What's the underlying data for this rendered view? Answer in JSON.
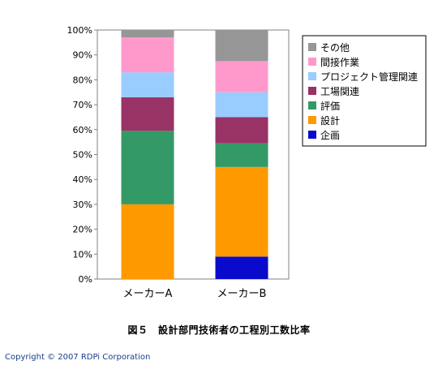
{
  "caption": "図５　設計部門技術者の工程別工数比率",
  "copyright": "Copyright © 2007  RDPi Corporation",
  "chart_data": {
    "type": "bar",
    "stacked": true,
    "categories": [
      "メーカーA",
      "メーカーB"
    ],
    "y_tick_labels": [
      "0%",
      "10%",
      "20%",
      "30%",
      "40%",
      "50%",
      "60%",
      "70%",
      "80%",
      "90%",
      "100%"
    ],
    "ylim": [
      0,
      100
    ],
    "legend_position": "right",
    "series": [
      {
        "name": "企画",
        "color": "#0a0acc",
        "values": [
          0,
          9
        ]
      },
      {
        "name": "設計",
        "color": "#ff9900",
        "values": [
          30,
          36
        ]
      },
      {
        "name": "評価",
        "color": "#339966",
        "values": [
          29.5,
          9.5
        ]
      },
      {
        "name": "工場関連",
        "color": "#993366",
        "values": [
          13.5,
          10.5
        ]
      },
      {
        "name": "プロジェクト管理関連",
        "color": "#99ccff",
        "values": [
          10,
          10
        ]
      },
      {
        "name": "間接作業",
        "color": "#ff99cc",
        "values": [
          14,
          12.5
        ]
      },
      {
        "name": "その他",
        "color": "#969696",
        "values": [
          3,
          12.5
        ]
      }
    ]
  }
}
